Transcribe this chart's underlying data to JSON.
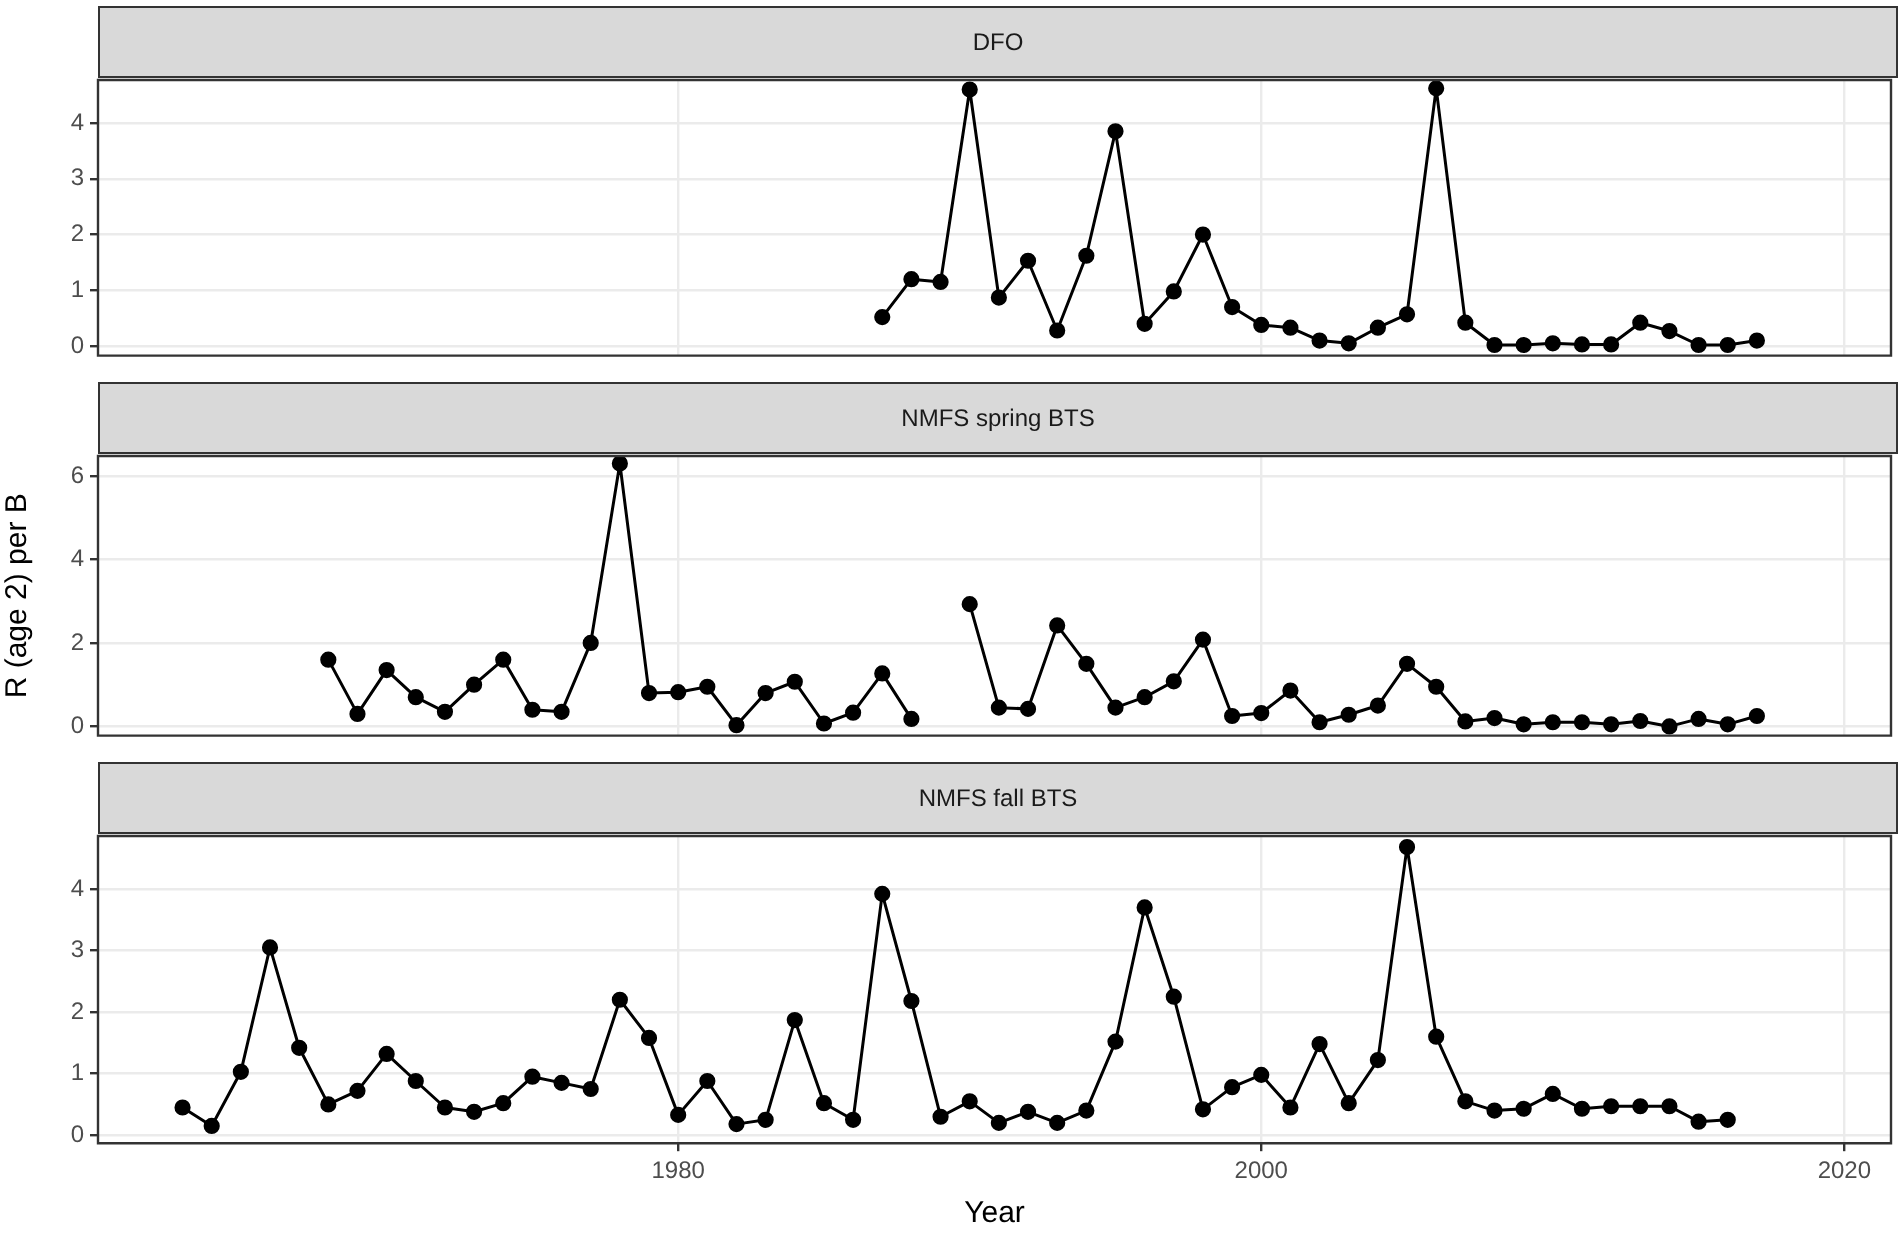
{
  "chart_data": [
    {
      "type": "line",
      "title": "DFO",
      "marker": "circle",
      "grid": true,
      "tick_labels": "y",
      "xlim": [
        1960.1,
        2021.6
      ],
      "xticks": [
        1980,
        2000,
        2020
      ],
      "ylim": [
        -0.17,
        4.77
      ],
      "yticks": [
        0,
        1,
        2,
        3,
        4
      ],
      "x": [
        1987,
        1988,
        1989,
        1990,
        1991,
        1992,
        1993,
        1994,
        1995,
        1996,
        1997,
        1998,
        1999,
        2000,
        2001,
        2002,
        2003,
        2004,
        2005,
        2006,
        2007,
        2008,
        2009,
        2010,
        2011,
        2012,
        2013,
        2014,
        2015,
        2016,
        2017
      ],
      "series": [
        {
          "color": "#000000",
          "values": [
            0.52,
            1.2,
            1.15,
            4.6,
            0.87,
            1.53,
            0.28,
            1.62,
            3.85,
            0.4,
            0.98,
            2.0,
            0.7,
            0.38,
            0.33,
            0.1,
            0.05,
            0.33,
            0.57,
            4.62,
            0.42,
            0.02,
            0.02,
            0.05,
            0.03,
            0.03,
            0.42,
            0.27,
            0.02,
            0.02,
            0.1
          ]
        }
      ]
    },
    {
      "type": "line",
      "title": "NMFS spring BTS",
      "ylabel": "R (age 2) per B",
      "marker": "circle",
      "grid": true,
      "tick_labels": "y",
      "xlim": [
        1960.1,
        2021.6
      ],
      "xticks": [
        1980,
        2000,
        2020
      ],
      "ylim": [
        -0.22,
        6.48
      ],
      "yticks": [
        0,
        2,
        4,
        6
      ],
      "x": [
        1968,
        1969,
        1970,
        1971,
        1972,
        1973,
        1974,
        1975,
        1976,
        1977,
        1978,
        1979,
        1980,
        1981,
        1982,
        1983,
        1984,
        1985,
        1986,
        1987,
        1988,
        1989,
        1990,
        1991,
        1992,
        1993,
        1994,
        1995,
        1996,
        1997,
        1998,
        1999,
        2000,
        2001,
        2002,
        2003,
        2004,
        2005,
        2006,
        2007,
        2008,
        2009,
        2010,
        2011,
        2012,
        2013,
        2014,
        2015,
        2016,
        2017
      ],
      "series": [
        {
          "color": "#000000",
          "values": [
            1.6,
            0.3,
            1.35,
            0.7,
            0.35,
            1.0,
            1.6,
            0.4,
            0.35,
            2.0,
            6.3,
            0.8,
            0.82,
            0.95,
            0.03,
            0.8,
            1.07,
            0.07,
            0.33,
            1.27,
            0.18,
            null,
            2.93,
            0.45,
            0.42,
            2.42,
            1.5,
            0.45,
            0.7,
            1.08,
            2.08,
            0.25,
            0.32,
            0.86,
            0.1,
            0.28,
            0.5,
            1.5,
            0.95,
            0.12,
            0.2,
            0.05,
            0.1,
            0.1,
            0.05,
            0.13,
            0.0,
            0.18,
            0.05,
            0.25
          ]
        }
      ]
    },
    {
      "type": "line",
      "title": "NMFS fall BTS",
      "xlabel": "Year",
      "marker": "circle",
      "grid": true,
      "xlim": [
        1960.1,
        2021.6
      ],
      "xticks": [
        1980,
        2000,
        2020
      ],
      "ylim": [
        -0.13,
        4.86
      ],
      "yticks": [
        0,
        1,
        2,
        3,
        4
      ],
      "x": [
        1963,
        1964,
        1965,
        1966,
        1967,
        1968,
        1969,
        1970,
        1971,
        1972,
        1973,
        1974,
        1975,
        1976,
        1977,
        1978,
        1979,
        1980,
        1981,
        1982,
        1983,
        1984,
        1985,
        1986,
        1987,
        1988,
        1989,
        1990,
        1991,
        1992,
        1993,
        1994,
        1995,
        1996,
        1997,
        1998,
        1999,
        2000,
        2001,
        2002,
        2003,
        2004,
        2005,
        2006,
        2007,
        2008,
        2009,
        2010,
        2011,
        2012,
        2013,
        2014,
        2015,
        2016
      ],
      "series": [
        {
          "color": "#000000",
          "values": [
            0.45,
            0.15,
            1.03,
            3.05,
            1.42,
            0.5,
            0.72,
            1.32,
            0.88,
            0.45,
            0.38,
            0.52,
            0.95,
            0.85,
            0.75,
            2.2,
            1.58,
            0.33,
            0.88,
            0.18,
            0.25,
            1.87,
            0.52,
            0.25,
            3.92,
            2.18,
            0.3,
            0.55,
            0.2,
            0.38,
            0.2,
            0.4,
            1.52,
            3.7,
            2.25,
            0.42,
            0.78,
            0.98,
            0.45,
            1.48,
            0.52,
            1.22,
            4.68,
            1.6,
            0.55,
            0.4,
            0.43,
            0.67,
            0.43,
            0.47,
            0.47,
            0.47,
            0.22,
            0.25
          ]
        }
      ]
    }
  ]
}
